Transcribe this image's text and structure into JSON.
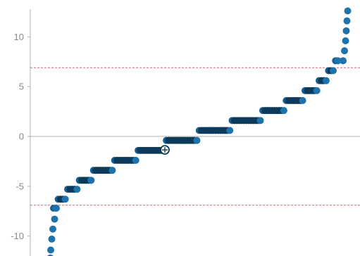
{
  "chart_data": {
    "type": "scatter",
    "title": "",
    "xlabel": "",
    "ylabel": "",
    "ylim": [
      -12,
      13.2
    ],
    "yticks": [
      10,
      5,
      0,
      -5,
      -10
    ],
    "grid": false,
    "legend": "none",
    "colors": {
      "point_dark": "#0d3a5a",
      "point_mid": "#175d8d",
      "point_light": "#1f73ad",
      "threshold": "#d0626f",
      "axis": "#b0b0b0",
      "zero_line": "#b0b0b0"
    },
    "thresholds": [
      6.9,
      -6.9
    ],
    "zero_line": 0,
    "tails": [
      {
        "side": "left",
        "values": [
          -7.2,
          -8.3,
          -9.3,
          -10.3,
          -11.4,
          -12.2
        ]
      },
      {
        "side": "right",
        "values": [
          7.6,
          8.6,
          9.6,
          10.6,
          11.6,
          12.6
        ]
      }
    ],
    "plateaus": [
      {
        "value": -7.2,
        "length": 2
      },
      {
        "value": -6.3,
        "length": 4
      },
      {
        "value": -5.3,
        "length": 5
      },
      {
        "value": -4.4,
        "length": 6
      },
      {
        "value": -3.4,
        "length": 9
      },
      {
        "value": -2.4,
        "length": 10
      },
      {
        "value": -1.4,
        "length": 12
      },
      {
        "value": -0.4,
        "length": 14
      },
      {
        "value": 0.6,
        "length": 14
      },
      {
        "value": 1.6,
        "length": 13
      },
      {
        "value": 2.6,
        "length": 10
      },
      {
        "value": 3.6,
        "length": 8
      },
      {
        "value": 4.6,
        "length": 6
      },
      {
        "value": 5.6,
        "length": 4
      },
      {
        "value": 6.6,
        "length": 3
      },
      {
        "value": 7.6,
        "length": 2
      }
    ],
    "highlight": {
      "label": "selected point",
      "y": -1.35
    }
  }
}
